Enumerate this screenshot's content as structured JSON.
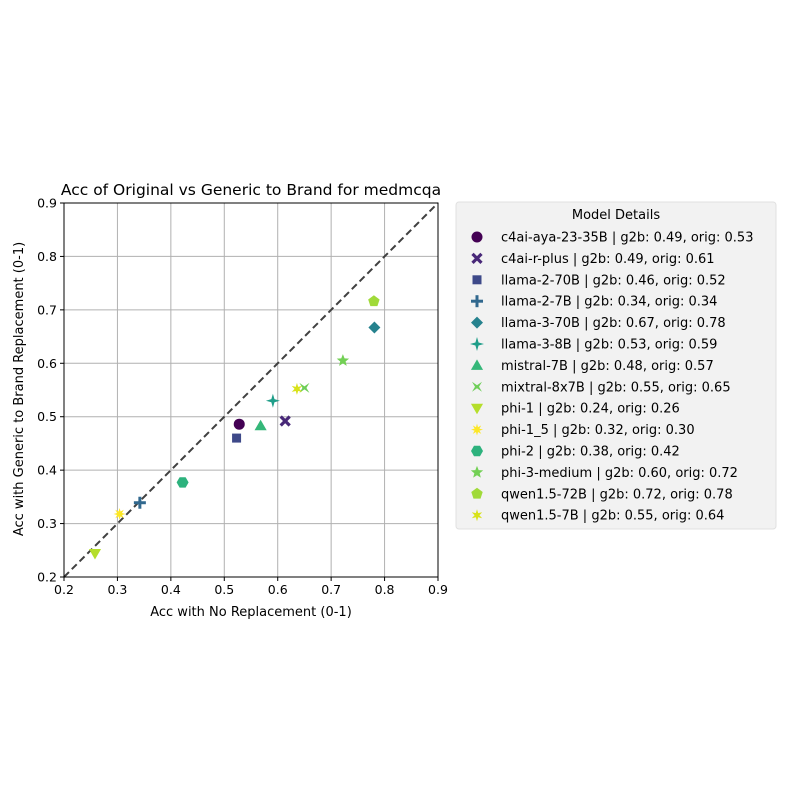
{
  "chart_data": {
    "type": "scatter",
    "title": "Acc of Original vs Generic to Brand for medmcqa",
    "xlabel": "Acc with No Replacement (0-1)",
    "ylabel": "Acc with Generic to Brand Replacement (0-1)",
    "xlim": [
      0.2,
      0.9
    ],
    "ylim": [
      0.2,
      0.9
    ],
    "xticks": [
      "0.2",
      "0.3",
      "0.4",
      "0.5",
      "0.6",
      "0.7",
      "0.8",
      "0.9"
    ],
    "yticks": [
      "0.2",
      "0.3",
      "0.4",
      "0.5",
      "0.6",
      "0.7",
      "0.8",
      "0.9"
    ],
    "grid": true,
    "diagonal_reference_line": true,
    "legend_title": "Model Details",
    "legend_placement": "outside-right",
    "series": [
      {
        "name": "c4ai-aya-23-35B | g2b: 0.49, orig: 0.53",
        "x": 0.528,
        "y": 0.486,
        "marker": "circle",
        "color": "#440154"
      },
      {
        "name": "c4ai-r-plus | g2b: 0.49, orig: 0.61",
        "x": 0.614,
        "y": 0.492,
        "marker": "x",
        "color": "#482878"
      },
      {
        "name": "llama-2-70B | g2b: 0.46, orig: 0.52",
        "x": 0.523,
        "y": 0.46,
        "marker": "square",
        "color": "#3e4989"
      },
      {
        "name": "llama-2-7B | g2b: 0.34, orig: 0.34",
        "x": 0.342,
        "y": 0.339,
        "marker": "plus",
        "color": "#31688e"
      },
      {
        "name": "llama-3-70B | g2b: 0.67, orig: 0.78",
        "x": 0.781,
        "y": 0.667,
        "marker": "diamond",
        "color": "#26828e"
      },
      {
        "name": "llama-3-8B | g2b: 0.53, orig: 0.59",
        "x": 0.591,
        "y": 0.53,
        "marker": "star4",
        "color": "#1f9e89"
      },
      {
        "name": "mistral-7B | g2b: 0.48, orig: 0.57",
        "x": 0.568,
        "y": 0.483,
        "marker": "triangle-up",
        "color": "#35b779"
      },
      {
        "name": "mixtral-8x7B | g2b: 0.55, orig: 0.65",
        "x": 0.65,
        "y": 0.554,
        "marker": "bowtie",
        "color": "#6ece58"
      },
      {
        "name": "phi-1 | g2b: 0.24, orig: 0.26",
        "x": 0.258,
        "y": 0.244,
        "marker": "triangle-down",
        "color": "#b5de2b"
      },
      {
        "name": "phi-1_5 | g2b: 0.32, orig: 0.30",
        "x": 0.304,
        "y": 0.318,
        "marker": "star8",
        "color": "#fde725"
      },
      {
        "name": "phi-2 | g2b: 0.38, orig: 0.42",
        "x": 0.422,
        "y": 0.377,
        "marker": "hexagon",
        "color": "#2db27d"
      },
      {
        "name": "phi-3-medium | g2b: 0.60, orig: 0.72",
        "x": 0.722,
        "y": 0.605,
        "marker": "star5",
        "color": "#73d055"
      },
      {
        "name": "qwen1.5-72B | g2b: 0.72, orig: 0.78",
        "x": 0.78,
        "y": 0.716,
        "marker": "pentagon",
        "color": "#a0da39"
      },
      {
        "name": "qwen1.5-7B | g2b: 0.55, orig: 0.64",
        "x": 0.636,
        "y": 0.552,
        "marker": "star6",
        "color": "#d8e219"
      }
    ]
  }
}
